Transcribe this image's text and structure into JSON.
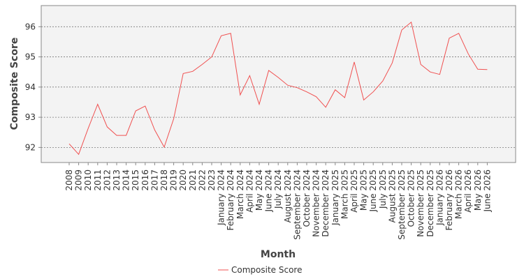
{
  "chart_data": {
    "type": "line",
    "xlabel": "Month",
    "ylabel": "Composite Score",
    "ylim": [
      91.5,
      96.7
    ],
    "yticks": [
      92,
      93,
      94,
      95,
      96
    ],
    "grid": "horizontal dotted",
    "legend_position": "bottom",
    "categories": [
      "2008",
      "2009",
      "2010",
      "2011",
      "2012",
      "2013",
      "2014",
      "2015",
      "2016",
      "2017",
      "2018",
      "2019",
      "2020",
      "2021",
      "2022",
      "2023",
      "January 2024",
      "February 2024",
      "March 2024",
      "April 2024",
      "May 2024",
      "June 2024",
      "July 2024",
      "August 2024",
      "September 2024",
      "October 2024",
      "November 2024",
      "December 2024",
      "January 2025",
      "March 2025",
      "April 2025",
      "May 2025",
      "June 2025",
      "July 2025",
      "August 2025",
      "September 2025",
      "October 2025",
      "November 2025",
      "December 2025",
      "January 2026",
      "February 2026",
      "March 2026",
      "April 2026",
      "May 2026",
      "June 2026"
    ],
    "series": [
      {
        "name": "Composite Score",
        "color": "#f05050",
        "values": [
          92.12,
          91.77,
          92.63,
          93.43,
          92.68,
          92.4,
          92.4,
          93.21,
          93.37,
          92.58,
          92.01,
          92.95,
          94.45,
          94.52,
          94.75,
          95.0,
          95.7,
          95.78,
          93.74,
          94.38,
          93.43,
          94.55,
          94.32,
          94.06,
          93.98,
          93.84,
          93.68,
          93.33,
          93.91,
          93.65,
          94.83,
          93.57,
          93.84,
          94.2,
          94.8,
          95.89,
          96.15,
          94.75,
          94.5,
          94.42,
          95.62,
          95.78,
          95.1,
          94.59,
          94.58
        ]
      }
    ]
  }
}
